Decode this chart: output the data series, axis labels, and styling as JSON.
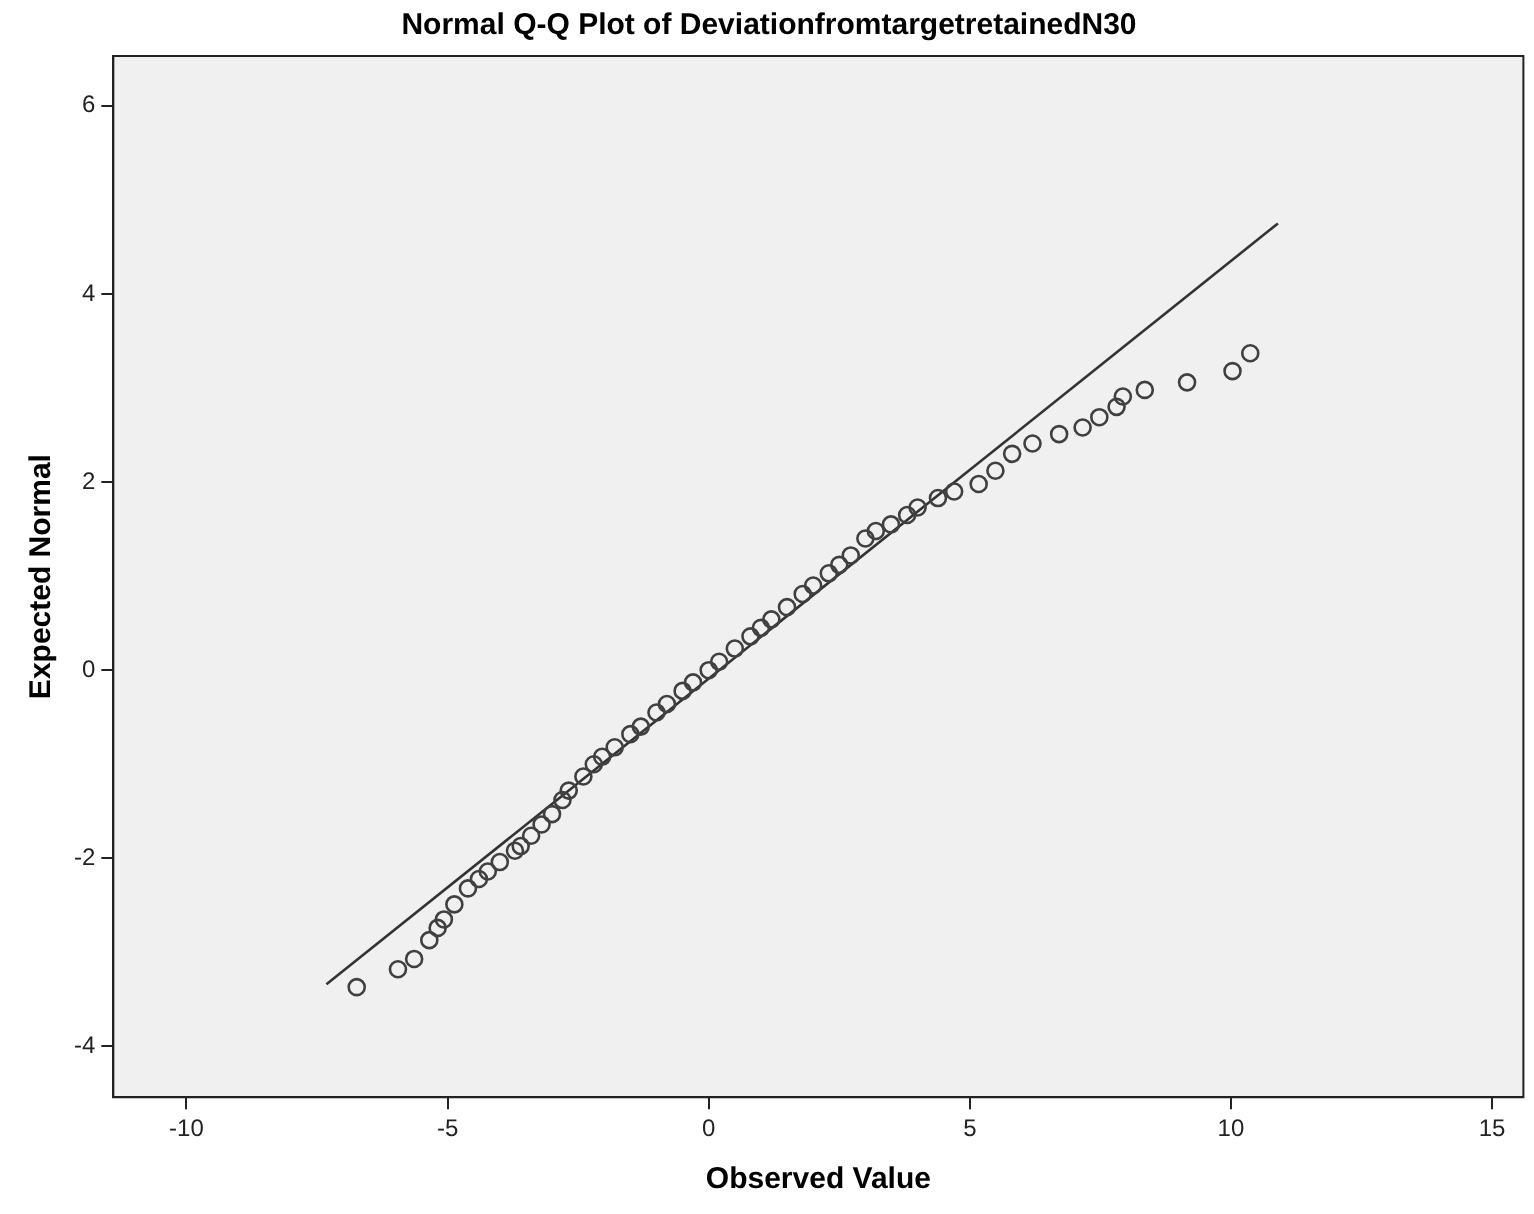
{
  "chart_data": {
    "type": "scatter",
    "title": "Normal Q-Q Plot of DeviationfromtargetretainedN30",
    "xlabel": "Observed Value",
    "ylabel": "Expected Normal",
    "xlim": [
      -11.4,
      15.6
    ],
    "xticks": [
      -10,
      -5,
      0,
      5,
      10,
      15
    ],
    "ylim": [
      -4.54,
      6.53
    ],
    "yticks": [
      -4,
      -2,
      0,
      2,
      4,
      6
    ],
    "grid": false,
    "legend": false,
    "marker": "circle",
    "series": [
      {
        "color": "#404040",
        "x": [
          -6.74,
          -5.95,
          -5.64,
          -5.35,
          -5.19,
          -5.07,
          -4.87,
          -4.61,
          -4.4,
          -4.23,
          -4.0,
          -3.71,
          -3.6,
          -3.4,
          -3.2,
          -3.0,
          -2.8,
          -2.68,
          -2.4,
          -2.2,
          -2.04,
          -1.8,
          -1.5,
          -1.3,
          -1.0,
          -0.8,
          -0.5,
          -0.3,
          0,
          0.2,
          0.5,
          0.8,
          1.0,
          1.2,
          1.5,
          1.8,
          2.0,
          2.3,
          2.5,
          2.72,
          3.0,
          3.2,
          3.49,
          3.8,
          4.0,
          4.39,
          4.7,
          5.17,
          5.49,
          5.81,
          6.2,
          6.71,
          7.16,
          7.48,
          7.81,
          7.93,
          8.35,
          9.16,
          10.03,
          10.37
        ],
        "values": [
          -3.37,
          -3.18,
          -3.07,
          -2.87,
          -2.74,
          -2.65,
          -2.49,
          -2.32,
          -2.22,
          -2.14,
          -2.04,
          -1.92,
          -1.87,
          -1.76,
          -1.64,
          -1.53,
          -1.38,
          -1.28,
          -1.13,
          -1.0,
          -0.92,
          -0.82,
          -0.68,
          -0.6,
          -0.45,
          -0.36,
          -0.22,
          -0.13,
          0,
          0.09,
          0.23,
          0.36,
          0.45,
          0.54,
          0.67,
          0.81,
          0.9,
          1.03,
          1.12,
          1.22,
          1.4,
          1.48,
          1.55,
          1.65,
          1.73,
          1.83,
          1.9,
          1.98,
          2.12,
          2.3,
          2.41,
          2.51,
          2.58,
          2.69,
          2.8,
          2.91,
          2.98,
          3.06,
          3.18,
          3.37
        ]
      },
      {
        "type": "line",
        "color": "#333333",
        "x": [
          -7.32,
          10.9
        ],
        "values": [
          -3.34,
          4.75
        ],
        "marker": "none"
      }
    ]
  }
}
